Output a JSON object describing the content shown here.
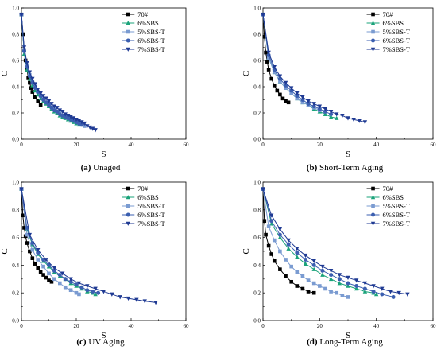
{
  "chart_data": [
    {
      "type": "scatter",
      "caption_letter": "(a)",
      "caption_text": " Unaged",
      "xlabel": "S",
      "ylabel": "C",
      "xlim": [
        0,
        60
      ],
      "ylim": [
        0,
        1.0
      ],
      "x_ticks": [
        0,
        20,
        40,
        60
      ],
      "y_ticks": [
        0.0,
        0.2,
        0.4,
        0.6,
        0.8,
        1.0
      ],
      "grid": false,
      "legend_position": "top-right",
      "series": [
        {
          "name": "70#",
          "color": "#000000",
          "marker": "square",
          "x": [
            0,
            0.5,
            1,
            1.5,
            2,
            2.5,
            3,
            3.5,
            4,
            5,
            6,
            7
          ],
          "y": [
            0.95,
            0.8,
            0.68,
            0.6,
            0.53,
            0.47,
            0.43,
            0.39,
            0.36,
            0.32,
            0.29,
            0.26
          ]
        },
        {
          "name": "6%SBS",
          "color": "#1aa37a",
          "marker": "triangle-up",
          "x": [
            0,
            1,
            2,
            3,
            4,
            5,
            6,
            7,
            8,
            9,
            10,
            11,
            12,
            13,
            14,
            15,
            16,
            17,
            18,
            19,
            20,
            21
          ],
          "y": [
            0.95,
            0.65,
            0.53,
            0.46,
            0.41,
            0.37,
            0.34,
            0.31,
            0.29,
            0.27,
            0.25,
            0.23,
            0.21,
            0.2,
            0.18,
            0.17,
            0.16,
            0.15,
            0.14,
            0.13,
            0.12,
            0.11
          ]
        },
        {
          "name": "5%SBS-T",
          "color": "#7a9bd1",
          "marker": "square",
          "x": [
            0,
            1,
            2,
            3,
            4,
            5,
            6,
            7,
            8,
            9,
            10,
            11,
            12,
            13,
            14,
            15,
            16,
            17,
            18,
            19,
            20,
            21,
            22,
            23
          ],
          "y": [
            0.95,
            0.68,
            0.56,
            0.49,
            0.44,
            0.4,
            0.36,
            0.33,
            0.31,
            0.28,
            0.26,
            0.24,
            0.23,
            0.21,
            0.2,
            0.18,
            0.17,
            0.16,
            0.15,
            0.14,
            0.13,
            0.12,
            0.11,
            0.1
          ]
        },
        {
          "name": "6%SBS-T",
          "color": "#3b5fb0",
          "marker": "circle",
          "x": [
            0,
            1,
            2,
            3,
            4,
            5,
            6,
            7,
            8,
            9,
            10,
            11,
            12,
            13,
            14,
            15,
            16,
            17,
            18,
            19,
            20,
            21,
            22
          ],
          "y": [
            0.95,
            0.67,
            0.55,
            0.48,
            0.43,
            0.39,
            0.36,
            0.33,
            0.3,
            0.28,
            0.26,
            0.24,
            0.22,
            0.21,
            0.19,
            0.18,
            0.17,
            0.16,
            0.15,
            0.14,
            0.13,
            0.12,
            0.11
          ]
        },
        {
          "name": "7%SBS-T",
          "color": "#1f3a93",
          "marker": "triangle-down",
          "x": [
            0,
            1,
            2,
            3,
            4,
            5,
            6,
            7,
            8,
            9,
            10,
            11,
            12,
            13,
            14,
            15,
            16,
            17,
            18,
            19,
            20,
            21,
            22,
            23,
            24,
            25,
            26,
            27
          ],
          "y": [
            0.95,
            0.7,
            0.58,
            0.51,
            0.46,
            0.42,
            0.38,
            0.35,
            0.33,
            0.31,
            0.29,
            0.27,
            0.25,
            0.24,
            0.22,
            0.21,
            0.19,
            0.18,
            0.17,
            0.16,
            0.15,
            0.14,
            0.13,
            0.12,
            0.1,
            0.09,
            0.08,
            0.07
          ]
        }
      ]
    },
    {
      "type": "scatter",
      "caption_letter": "(b)",
      "caption_text": " Short-Term Aging",
      "xlabel": "S",
      "ylabel": "C",
      "xlim": [
        0,
        60
      ],
      "ylim": [
        0,
        1.0
      ],
      "x_ticks": [
        0,
        20,
        40,
        60
      ],
      "y_ticks": [
        0.0,
        0.2,
        0.4,
        0.6,
        0.8,
        1.0
      ],
      "grid": false,
      "legend_position": "top-right",
      "series": [
        {
          "name": "70#",
          "color": "#000000",
          "marker": "square",
          "x": [
            0,
            0.5,
            1,
            1.5,
            2,
            3,
            4,
            5,
            6,
            7,
            8,
            9
          ],
          "y": [
            0.95,
            0.78,
            0.66,
            0.59,
            0.53,
            0.46,
            0.41,
            0.37,
            0.34,
            0.31,
            0.29,
            0.28
          ]
        },
        {
          "name": "6%SBS",
          "color": "#1aa37a",
          "marker": "triangle-up",
          "x": [
            0,
            2,
            4,
            6,
            8,
            10,
            12,
            14,
            16,
            18,
            20,
            22,
            24,
            26
          ],
          "y": [
            0.95,
            0.62,
            0.51,
            0.44,
            0.39,
            0.35,
            0.31,
            0.28,
            0.26,
            0.23,
            0.21,
            0.19,
            0.17,
            0.16
          ]
        },
        {
          "name": "5%SBS-T",
          "color": "#7a9bd1",
          "marker": "square",
          "x": [
            0,
            2,
            4,
            6,
            8,
            10,
            12,
            14,
            16,
            18,
            20,
            22
          ],
          "y": [
            0.95,
            0.62,
            0.51,
            0.44,
            0.39,
            0.35,
            0.31,
            0.28,
            0.26,
            0.24,
            0.22,
            0.21
          ]
        },
        {
          "name": "6%SBS-T",
          "color": "#3b5fb0",
          "marker": "circle",
          "x": [
            0,
            2,
            4,
            6,
            8,
            10,
            12,
            14,
            16,
            18,
            20,
            22,
            24
          ],
          "y": [
            0.95,
            0.64,
            0.53,
            0.46,
            0.41,
            0.37,
            0.33,
            0.3,
            0.27,
            0.25,
            0.23,
            0.21,
            0.19
          ]
        },
        {
          "name": "7%SBS-T",
          "color": "#1f3a93",
          "marker": "triangle-down",
          "x": [
            0,
            2,
            4,
            6,
            8,
            10,
            12,
            14,
            16,
            18,
            20,
            22,
            24,
            26,
            28,
            30,
            32,
            34,
            36
          ],
          "y": [
            0.95,
            0.66,
            0.55,
            0.48,
            0.43,
            0.39,
            0.35,
            0.32,
            0.29,
            0.27,
            0.25,
            0.23,
            0.21,
            0.19,
            0.18,
            0.16,
            0.15,
            0.14,
            0.13
          ]
        }
      ]
    },
    {
      "type": "scatter",
      "caption_letter": "(c)",
      "caption_text": " UV Aging",
      "xlabel": "S",
      "ylabel": "C",
      "xlim": [
        0,
        60
      ],
      "ylim": [
        0,
        1.0
      ],
      "x_ticks": [
        0,
        20,
        40,
        60
      ],
      "y_ticks": [
        0.0,
        0.2,
        0.4,
        0.6,
        0.8,
        1.0
      ],
      "grid": false,
      "legend_position": "top-right",
      "series": [
        {
          "name": "70#",
          "color": "#000000",
          "marker": "square",
          "x": [
            0,
            0.5,
            1,
            1.5,
            2,
            3,
            4,
            5,
            6,
            7,
            8,
            9,
            10,
            11
          ],
          "y": [
            0.95,
            0.76,
            0.67,
            0.61,
            0.56,
            0.5,
            0.45,
            0.41,
            0.38,
            0.35,
            0.33,
            0.31,
            0.29,
            0.28
          ]
        },
        {
          "name": "6%SBS",
          "color": "#1aa37a",
          "marker": "triangle-up",
          "x": [
            0,
            2,
            4,
            6,
            8,
            10,
            12,
            14,
            16,
            18,
            20,
            22,
            24,
            26,
            27
          ],
          "y": [
            0.95,
            0.66,
            0.55,
            0.48,
            0.43,
            0.39,
            0.35,
            0.32,
            0.3,
            0.27,
            0.25,
            0.23,
            0.21,
            0.2,
            0.19
          ]
        },
        {
          "name": "5%SBS-T",
          "color": "#7a9bd1",
          "marker": "square",
          "x": [
            0,
            2,
            4,
            6,
            8,
            10,
            12,
            14,
            16,
            18,
            20,
            21
          ],
          "y": [
            0.95,
            0.62,
            0.51,
            0.44,
            0.39,
            0.34,
            0.3,
            0.27,
            0.24,
            0.22,
            0.2,
            0.19
          ]
        },
        {
          "name": "6%SBS-T",
          "color": "#3b5fb0",
          "marker": "circle",
          "x": [
            0,
            2,
            4,
            6,
            8,
            10,
            12,
            14,
            16,
            18,
            20,
            22,
            24,
            26,
            28
          ],
          "y": [
            0.95,
            0.67,
            0.56,
            0.49,
            0.44,
            0.4,
            0.36,
            0.33,
            0.3,
            0.28,
            0.26,
            0.24,
            0.22,
            0.21,
            0.2
          ]
        },
        {
          "name": "7%SBS-T",
          "color": "#1f3a93",
          "marker": "triangle-down",
          "x": [
            0,
            3,
            6,
            9,
            12,
            15,
            18,
            21,
            24,
            27,
            30,
            33,
            36,
            39,
            42,
            45,
            49
          ],
          "y": [
            0.95,
            0.62,
            0.51,
            0.44,
            0.38,
            0.34,
            0.3,
            0.27,
            0.25,
            0.23,
            0.21,
            0.19,
            0.17,
            0.16,
            0.15,
            0.14,
            0.13
          ]
        }
      ]
    },
    {
      "type": "scatter",
      "caption_letter": "(d)",
      "caption_text": " Long-Term Aging",
      "xlabel": "S",
      "ylabel": "C",
      "xlim": [
        0,
        60
      ],
      "ylim": [
        0,
        1.0
      ],
      "x_ticks": [
        0,
        20,
        40,
        60
      ],
      "y_ticks": [
        0.0,
        0.2,
        0.4,
        0.6,
        0.8,
        1.0
      ],
      "grid": false,
      "legend_position": "top-right",
      "series": [
        {
          "name": "70#",
          "color": "#000000",
          "marker": "square",
          "x": [
            0,
            0.5,
            1,
            2,
            3,
            4,
            6,
            8,
            10,
            12,
            14,
            16,
            18
          ],
          "y": [
            0.95,
            0.72,
            0.62,
            0.54,
            0.48,
            0.43,
            0.37,
            0.32,
            0.28,
            0.25,
            0.23,
            0.21,
            0.2
          ]
        },
        {
          "name": "6%SBS",
          "color": "#1aa37a",
          "marker": "triangle-up",
          "x": [
            0,
            3,
            6,
            9,
            12,
            15,
            18,
            21,
            24,
            27,
            30,
            33,
            36,
            39,
            40
          ],
          "y": [
            0.95,
            0.7,
            0.6,
            0.52,
            0.46,
            0.41,
            0.37,
            0.33,
            0.3,
            0.27,
            0.25,
            0.23,
            0.21,
            0.2,
            0.19
          ]
        },
        {
          "name": "5%SBS-T",
          "color": "#7a9bd1",
          "marker": "square",
          "x": [
            0,
            2,
            4,
            6,
            8,
            10,
            12,
            14,
            16,
            18,
            20,
            22,
            24,
            26,
            28,
            30
          ],
          "y": [
            0.95,
            0.68,
            0.58,
            0.5,
            0.44,
            0.39,
            0.35,
            0.32,
            0.29,
            0.27,
            0.25,
            0.23,
            0.21,
            0.2,
            0.18,
            0.17
          ]
        },
        {
          "name": "6%SBS-T",
          "color": "#3b5fb0",
          "marker": "circle",
          "x": [
            0,
            3,
            6,
            9,
            12,
            15,
            18,
            21,
            24,
            27,
            30,
            33,
            36,
            39,
            42,
            46
          ],
          "y": [
            0.95,
            0.72,
            0.62,
            0.55,
            0.49,
            0.44,
            0.4,
            0.36,
            0.33,
            0.3,
            0.27,
            0.25,
            0.23,
            0.21,
            0.19,
            0.17
          ]
        },
        {
          "name": "7%SBS-T",
          "color": "#1f3a93",
          "marker": "triangle-down",
          "x": [
            0,
            3,
            6,
            9,
            12,
            15,
            18,
            21,
            24,
            27,
            30,
            33,
            36,
            39,
            42,
            45,
            48,
            51
          ],
          "y": [
            0.95,
            0.76,
            0.66,
            0.58,
            0.52,
            0.47,
            0.43,
            0.39,
            0.36,
            0.33,
            0.31,
            0.29,
            0.27,
            0.25,
            0.23,
            0.21,
            0.2,
            0.19
          ]
        }
      ]
    }
  ]
}
